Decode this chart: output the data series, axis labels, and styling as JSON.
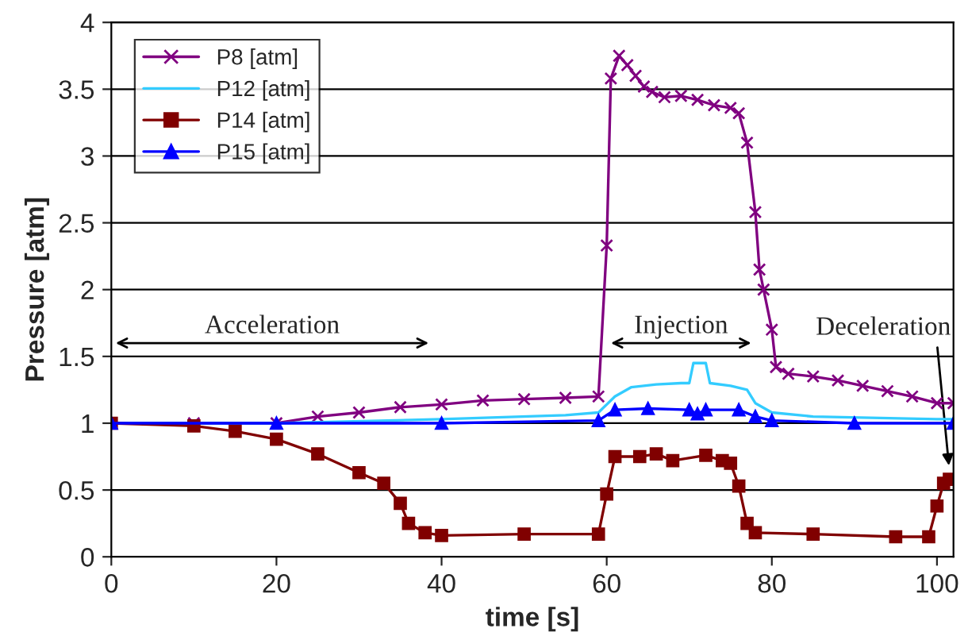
{
  "chart_data": {
    "type": "line",
    "xlabel": "time [s]",
    "ylabel": "Pressure [atm]",
    "xlim": [
      0,
      102
    ],
    "xticks": [
      0,
      20,
      40,
      60,
      80,
      100
    ],
    "ylim": [
      0,
      4
    ],
    "yticks": [
      0,
      0.5,
      1,
      1.5,
      2,
      2.5,
      3,
      3.5,
      4
    ],
    "grid": "y",
    "legend": "top left",
    "series": [
      {
        "name": "P8 [atm]",
        "color": "#800080",
        "marker": "cross",
        "x": [
          0,
          10,
          20,
          25,
          30,
          35,
          40,
          45,
          50,
          55,
          59,
          60,
          60.5,
          61.5,
          62.5,
          63.5,
          64.5,
          65.5,
          67,
          69,
          71,
          73,
          75,
          76,
          77,
          78,
          78.5,
          79,
          80,
          80.5,
          82,
          85,
          88,
          91,
          94,
          97,
          100,
          102
        ],
        "values": [
          1.0,
          1.0,
          1.0,
          1.05,
          1.08,
          1.12,
          1.14,
          1.17,
          1.18,
          1.19,
          1.2,
          2.33,
          3.58,
          3.75,
          3.68,
          3.6,
          3.52,
          3.48,
          3.44,
          3.45,
          3.42,
          3.38,
          3.36,
          3.32,
          3.1,
          2.58,
          2.15,
          2.0,
          1.7,
          1.42,
          1.37,
          1.35,
          1.32,
          1.28,
          1.24,
          1.2,
          1.15,
          1.15
        ]
      },
      {
        "name": "P12 [atm]",
        "color": "#33ccff",
        "marker": "none",
        "x": [
          0,
          20,
          40,
          55,
          59,
          61,
          63,
          66,
          69,
          70,
          70.5,
          72,
          72.5,
          75,
          77,
          78,
          80,
          85,
          100,
          102
        ],
        "values": [
          1.0,
          1.0,
          1.03,
          1.06,
          1.08,
          1.2,
          1.27,
          1.29,
          1.3,
          1.3,
          1.45,
          1.45,
          1.3,
          1.28,
          1.25,
          1.15,
          1.08,
          1.05,
          1.03,
          1.03
        ]
      },
      {
        "name": "P14 [atm]",
        "color": "#800000",
        "marker": "square",
        "x": [
          0,
          10,
          15,
          20,
          25,
          30,
          33,
          35,
          36,
          38,
          40,
          50,
          59,
          60,
          61,
          64,
          66,
          68,
          72,
          74,
          75,
          76,
          77,
          78,
          85,
          95,
          99,
          100,
          100.8,
          101.5
        ],
        "values": [
          1.0,
          0.98,
          0.94,
          0.88,
          0.77,
          0.63,
          0.55,
          0.4,
          0.25,
          0.18,
          0.16,
          0.17,
          0.17,
          0.47,
          0.75,
          0.75,
          0.77,
          0.72,
          0.76,
          0.72,
          0.7,
          0.53,
          0.25,
          0.18,
          0.17,
          0.15,
          0.15,
          0.38,
          0.55,
          0.58
        ]
      },
      {
        "name": "P15 [atm]",
        "color": "#0000ff",
        "marker": "triangle",
        "x": [
          0,
          20,
          40,
          59,
          61,
          65,
          70,
          71,
          72,
          76,
          78,
          80,
          90,
          102
        ],
        "values": [
          1.0,
          1.0,
          1.0,
          1.02,
          1.1,
          1.11,
          1.1,
          1.07,
          1.1,
          1.1,
          1.05,
          1.02,
          1.0,
          1.0
        ]
      }
    ],
    "annotations": [
      "Acceleration",
      "Injection",
      {
        "text": "Deceleration",
        "x": 101.5,
        "y": 0.65
      }
    ]
  }
}
